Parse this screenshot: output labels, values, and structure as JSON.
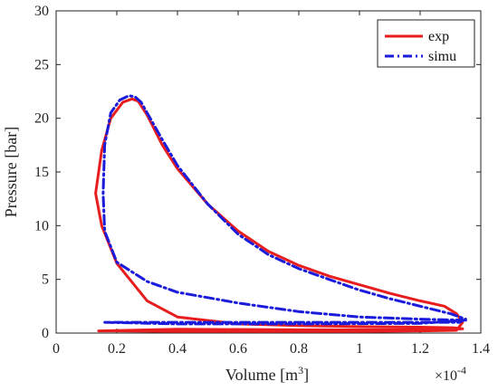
{
  "chart_data": {
    "type": "line",
    "title": "",
    "xlabel": "Volume [m",
    "xlabel_sup": "3",
    "xlabel_close": "]",
    "ylabel": "Pressure [bar]",
    "x_multiplier": "×10",
    "x_multiplier_exp": "-4",
    "xlim": [
      0,
      1.4
    ],
    "ylim": [
      0,
      30
    ],
    "x_ticks": [
      "0",
      "0.2",
      "0.4",
      "0.6",
      "0.8",
      "1",
      "1.2",
      "1.4"
    ],
    "y_ticks": [
      "0",
      "5",
      "10",
      "15",
      "20",
      "25",
      "30"
    ],
    "grid": false,
    "legend_position": "top-right",
    "series": [
      {
        "name": "exp",
        "color": "#e81e1e",
        "style": "solid",
        "x": [
          1.34,
          1.31,
          1.2,
          1.0,
          0.8,
          0.6,
          0.4,
          0.3,
          0.2,
          0.15,
          0.13,
          0.15,
          0.18,
          0.22,
          0.25,
          0.27,
          0.3,
          0.35,
          0.4,
          0.5,
          0.6,
          0.7,
          0.8,
          0.9,
          1.0,
          1.1,
          1.2,
          1.28,
          1.32,
          1.34,
          1.32,
          1.2,
          1.0,
          0.8,
          0.6,
          0.4,
          0.2,
          0.14,
          0.4,
          0.8,
          1.2,
          1.34
        ],
        "y": [
          0.4,
          0.5,
          0.55,
          0.6,
          0.7,
          0.85,
          1.5,
          3.0,
          6.5,
          10.0,
          13.0,
          17.0,
          20.0,
          21.5,
          21.8,
          21.6,
          20.3,
          17.5,
          15.3,
          12.0,
          9.5,
          7.6,
          6.3,
          5.3,
          4.5,
          3.7,
          3.0,
          2.5,
          1.8,
          1.0,
          0.25,
          0.2,
          0.15,
          0.15,
          0.15,
          0.15,
          0.2,
          0.2,
          0.35,
          0.3,
          0.3,
          0.4
        ]
      },
      {
        "name": "simu",
        "color": "#1b1bdc",
        "style": "dashdot",
        "x": [
          1.35,
          1.2,
          1.0,
          0.8,
          0.6,
          0.4,
          0.3,
          0.2,
          0.16,
          0.155,
          0.16,
          0.18,
          0.21,
          0.24,
          0.26,
          0.28,
          0.3,
          0.35,
          0.4,
          0.5,
          0.6,
          0.7,
          0.8,
          0.9,
          1.0,
          1.1,
          1.2,
          1.3,
          1.35,
          1.33,
          1.2,
          1.0,
          0.8,
          0.6,
          0.4,
          0.2,
          0.16,
          0.4,
          0.8,
          1.2,
          1.35
        ],
        "y": [
          1.2,
          1.3,
          1.5,
          2.0,
          2.8,
          3.8,
          4.8,
          6.6,
          9.5,
          13.0,
          17.5,
          20.5,
          21.7,
          22.1,
          22.0,
          21.5,
          20.5,
          18.0,
          15.6,
          12.0,
          9.2,
          7.3,
          6.0,
          5.0,
          4.0,
          3.2,
          2.5,
          1.8,
          1.3,
          1.0,
          1.0,
          1.0,
          1.0,
          1.0,
          1.0,
          1.0,
          1.0,
          0.85,
          0.85,
          0.9,
          1.2
        ]
      }
    ]
  }
}
